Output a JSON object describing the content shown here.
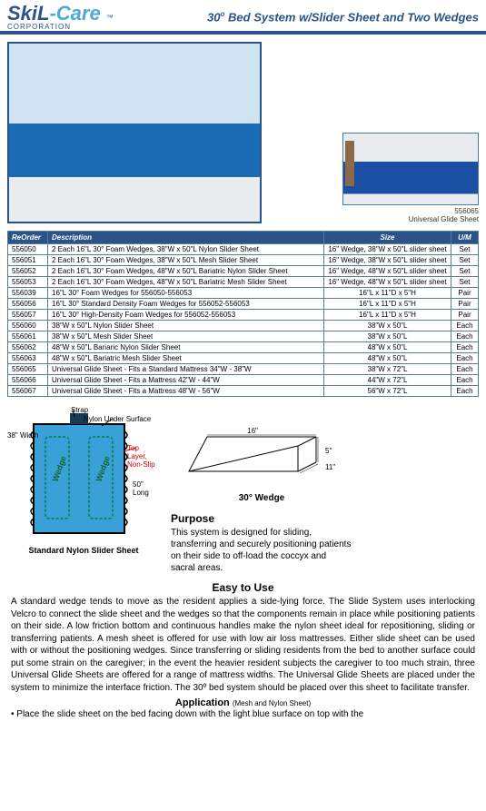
{
  "header": {
    "logo_brand_1": "SkiL",
    "logo_brand_2": "-Care",
    "logo_tm": "™",
    "logo_sub": "CORPORATION",
    "title_prefix": "30",
    "title_deg": "o",
    "title_rest": " Bed System w/Slider Sheet  and Two Wedges"
  },
  "photos": {
    "side_code": "556065",
    "side_caption": "Universal Glide Sheet"
  },
  "table": {
    "columns": [
      "ReOrder",
      "Description",
      "Size",
      "U/M"
    ],
    "col_widths": [
      "44px",
      "auto",
      "140px",
      "30px"
    ],
    "rows": [
      [
        "556050",
        "2 Each 16\"L 30° Foam Wedges, 38\"W x 50\"L Nylon Slider Sheet",
        "16\" Wedge, 38\"W x 50\"L slider sheet",
        "Set"
      ],
      [
        "556051",
        "2 Each 16\"L 30° Foam Wedges, 38\"W x 50\"L Mesh Slider Sheet",
        "16\" Wedge, 38\"W x 50\"L slider sheet",
        "Set"
      ],
      [
        "556052",
        "2 Each 16\"L 30° Foam Wedges, 48\"W x 50\"L Bariatric Nylon Slider Sheet",
        "16\" Wedge, 48\"W x 50\"L slider sheet",
        "Set"
      ],
      [
        "556053",
        "2 Each 16\"L 30° Foam Wedges, 48\"W x 50\"L Bariatric Mesh Slider Sheet",
        "16\" Wedge, 48\"W x 50\"L slider sheet",
        "Set"
      ],
      [
        "556039",
        "16\"L 30° Foam Wedges for 556050-556053",
        "16\"L x 11\"D x 5\"H",
        "Pair"
      ],
      [
        "556056",
        "16\"L 30° Standard Density Foam Wedges for 556052-556053",
        "16\"L x 11\"D x 5\"H",
        "Pair"
      ],
      [
        "556057",
        "16\"L 30° High-Density Foam Wedges for 556052-556053",
        "16\"L x 11\"D x 5\"H",
        "Pair"
      ],
      [
        "556060",
        "38\"W x 50\"L Nylon Slider Sheet",
        "38\"W x 50\"L",
        "Each"
      ],
      [
        "556061",
        "38\"W x 50\"L Mesh Slider Sheet",
        "38\"W x 50\"L",
        "Each"
      ],
      [
        "556062",
        "48\"W x 50\"L Bariaric Nylon Slider Sheet",
        "48\"W x 50\"L",
        "Each"
      ],
      [
        "556063",
        "48\"W x 50\"L Bariatric Mesh Slider Sheet",
        "48\"W x 50\"L",
        "Each"
      ],
      [
        "556065",
        "Universal Glide Sheet - Fits a Standard Mattress 34\"W - 38\"W",
        "38\"W x 72\"L",
        "Each"
      ],
      [
        "556066",
        "Universal Glide Sheet - Fits a Mattress 42\"W - 44\"W",
        "44\"W x 72\"L",
        "Each"
      ],
      [
        "556067",
        "Universal Glide Sheet - Fits a Mattress 48\"W - 56\"W",
        "56\"W x 72\"L",
        "Each"
      ]
    ]
  },
  "diagrams": {
    "sheet": {
      "fill": "#3aa0d8",
      "border": "#000000",
      "strap_label": "Strap",
      "under_label": "Nylon Under Surface",
      "width_label": "38\" Width",
      "top_layer_label": "Top Layer, Non-Slip",
      "length_label": "50\" Long",
      "wedge_label": "Wedge",
      "caption": "Standard Nylon Slider Sheet"
    },
    "wedge": {
      "length_label": "16\"",
      "height_label": "5\"",
      "depth_label": "11\"",
      "caption": "30° Wedge"
    }
  },
  "purpose": {
    "heading": "Purpose",
    "text": "This system is designed for sliding, transferring and securely positioning patients on their side to off-load the coccyx and sacral areas."
  },
  "easy": {
    "heading": "Easy to Use",
    "text": "A standard wedge tends to move as the resident applies a side-lying force. The Slide System uses interlocking Velcro to connect the slide sheet and the wedges so that the components remain in place while positioning patients on their side.  A low friction bottom and continuous handles make the nylon sheet ideal for repositioning, sliding or transferring patients.   A mesh sheet is offered for use with low air loss mattresses.  Either slide sheet can be used with or without the positioning wedges.  Since transferring or sliding residents from the bed to another surface could put some strain on the caregiver; in the event the heavier resident subjects the caregiver to too much strain, three Universal Glide Sheets are offered for a range of mattress widths. The Universal Glide Sheets are placed under the system to minimize the interface friction.  The 30º bed system should be placed over this sheet to facilitate transfer."
  },
  "application": {
    "heading": "Application",
    "sub": "(Mesh and Nylon Sheet)",
    "text": "•  Place the slide sheet on the bed facing down with the light blue surface on top with the"
  }
}
